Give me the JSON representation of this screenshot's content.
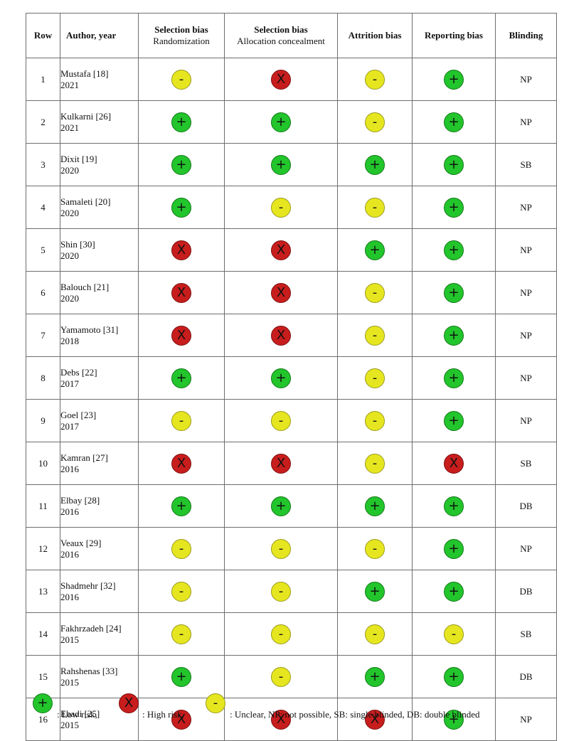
{
  "table": {
    "headers": {
      "row": "Row",
      "author": "Author, year",
      "randomization_title": "Selection bias",
      "randomization_sub": "Randomization",
      "allocation_title": "Selection bias",
      "allocation_sub": "Allocation concealment",
      "attrition": "Attrition bias",
      "reporting": "Reporting bias",
      "blinding": "Blinding"
    },
    "rows": [
      {
        "row": "1",
        "author": "Mustafa [18]",
        "year": "2021",
        "randomization": "unclear",
        "allocation": "high",
        "attrition": "unclear",
        "reporting": "low",
        "blinding": "NP"
      },
      {
        "row": "2",
        "author": "Kulkarni [26]",
        "year": "2021",
        "randomization": "low",
        "allocation": "low",
        "attrition": "unclear",
        "reporting": "low",
        "blinding": "NP"
      },
      {
        "row": "3",
        "author": "Dixit [19]",
        "year": "2020",
        "randomization": "low",
        "allocation": "low",
        "attrition": "low",
        "reporting": "low",
        "blinding": "SB"
      },
      {
        "row": "4",
        "author": "Samaleti [20]",
        "year": "2020",
        "randomization": "low",
        "allocation": "unclear",
        "attrition": "unclear",
        "reporting": "low",
        "blinding": "NP"
      },
      {
        "row": "5",
        "author": "Shin [30]",
        "year": "2020",
        "randomization": "high",
        "allocation": "high",
        "attrition": "low",
        "reporting": "low",
        "blinding": "NP"
      },
      {
        "row": "6",
        "author": "Balouch [21]",
        "year": "2020",
        "randomization": "high",
        "allocation": "high",
        "attrition": "unclear",
        "reporting": "low",
        "blinding": "NP"
      },
      {
        "row": "7",
        "author": "Yamamoto [31]",
        "year": "2018",
        "randomization": "high",
        "allocation": "high",
        "attrition": "unclear",
        "reporting": "low",
        "blinding": "NP"
      },
      {
        "row": "8",
        "author": "Debs [22]",
        "year": "2017",
        "randomization": "low",
        "allocation": "low",
        "attrition": "unclear",
        "reporting": "low",
        "blinding": "NP"
      },
      {
        "row": "9",
        "author": "Goel [23]",
        "year": "2017",
        "randomization": "unclear",
        "allocation": "unclear",
        "attrition": "unclear",
        "reporting": "low",
        "blinding": "NP"
      },
      {
        "row": "10",
        "author": "Kamran [27]",
        "year": "2016",
        "randomization": "high",
        "allocation": "high",
        "attrition": "unclear",
        "reporting": "high",
        "blinding": "SB"
      },
      {
        "row": "11",
        "author": "Elbay [28]",
        "year": "2016",
        "randomization": "low",
        "allocation": "low",
        "attrition": "low",
        "reporting": "low",
        "blinding": "DB"
      },
      {
        "row": "12",
        "author": "Veaux [29]",
        "year": "2016",
        "randomization": "unclear",
        "allocation": "unclear",
        "attrition": "unclear",
        "reporting": "low",
        "blinding": "NP"
      },
      {
        "row": "13",
        "author": "Shadmehr [32]",
        "year": "2016",
        "randomization": "unclear",
        "allocation": "unclear",
        "attrition": "low",
        "reporting": "low",
        "blinding": "DB"
      },
      {
        "row": "14",
        "author": "Fakhrzadeh [24]",
        "year": "2015",
        "randomization": "unclear",
        "allocation": "unclear",
        "attrition": "unclear",
        "reporting": "unclear",
        "blinding": "SB"
      },
      {
        "row": "15",
        "author": "Rahshenas [33]",
        "year": "2015",
        "randomization": "low",
        "allocation": "unclear",
        "attrition": "low",
        "reporting": "low",
        "blinding": "DB"
      },
      {
        "row": "16",
        "author": "Ebadi [25]",
        "year": "2015",
        "randomization": "high",
        "allocation": "high",
        "attrition": "high",
        "reporting": "low",
        "blinding": "NP"
      }
    ]
  },
  "marks": {
    "low": {
      "glyph": "+",
      "color": "#22c52b",
      "icon": "low-risk-icon"
    },
    "high": {
      "glyph": "X",
      "color": "#c81d1d",
      "icon": "high-risk-icon"
    },
    "unclear": {
      "glyph": "-",
      "color": "#e6e620",
      "icon": "unclear-risk-icon"
    }
  },
  "legend": {
    "low": ": Low risk,",
    "high": ": High risk,",
    "unclear": ": Unclear,  NP: not possible,  SB: single blinded,  DB: double blinded"
  }
}
